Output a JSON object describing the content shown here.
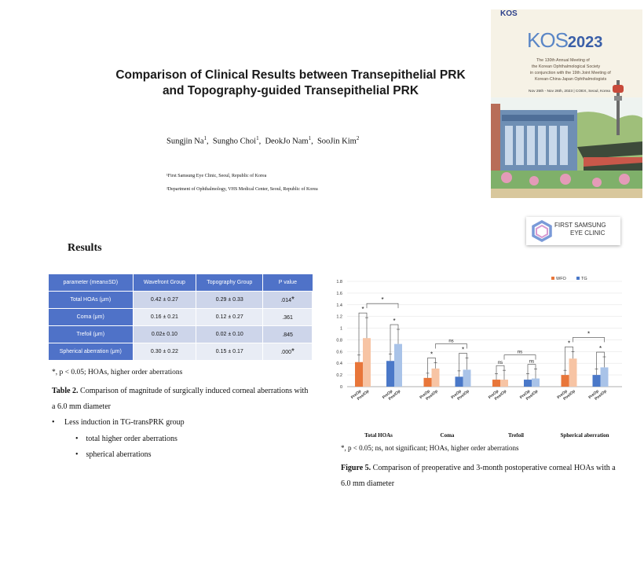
{
  "poster": {
    "title_line1": "Comparison of Clinical Results between Transepithelial PRK",
    "title_line2": "and Topography-guided Transepithelial PRK",
    "authors": [
      {
        "name": "Sungjin Na",
        "sup": "1"
      },
      {
        "name": "Sungho Choi",
        "sup": "1"
      },
      {
        "name": "DeokJo Nam",
        "sup": "1"
      },
      {
        "name": "SooJin Kim",
        "sup": "2"
      }
    ],
    "affiliation1": "¹First Samsung Eye Clinic, Seoul, Republic of Korea",
    "affiliation2": "²Department of Ophthalmology, VHS Medical Center, Seoul, Republic of Korea"
  },
  "conference": {
    "small_logo": "KOS",
    "brand": "KOS",
    "year": "2023",
    "line1": "The 130th Annual Meeting of",
    "line2": "the Korean Ophthalmological Society",
    "line3": "in conjunction with the 19th Joint Meeting of",
    "line4": "Korean-China-Japan Ophthalmologists",
    "date": "Nov 25th - Nov 26th, 2023 | COEX, Seoul, Korea"
  },
  "clinic": {
    "line1": "FIRST SAMSUNG",
    "line2": "EYE CLINIC"
  },
  "results_heading": "Results",
  "table": {
    "headers": [
      "parameter (mean±SD)",
      "Wavefront Group",
      "Topography Group",
      "P value"
    ],
    "rows": [
      {
        "param": "Total HOAs (μm)",
        "wf": "0.42 ± 0.27",
        "tg": "0.29 ± 0.33",
        "p": ".014",
        "star": "*"
      },
      {
        "param": "Coma (μm)",
        "wf": "0.16 ± 0.21",
        "tg": "0.12 ± 0.27",
        "p": ".361",
        "star": ""
      },
      {
        "param": "Trefoil (μm)",
        "wf": "0.02± 0.10",
        "tg": "0.02 ± 0.10",
        "p": ".845",
        "star": ""
      },
      {
        "param": "Spherical aberration (μm)",
        "wf": "0.30 ± 0.22",
        "tg": "0.15 ± 0.17",
        "p": ".000",
        "star": "*"
      }
    ],
    "footnote": "*, p < 0.05; HOAs, higher order aberrations",
    "caption_bold": "Table 2.",
    "caption_text": " Comparison of magnitude of surgically induced corneal aberrations with a 6.0 mm  diameter",
    "bullet_main": "Less induction in TG-transPRK group",
    "bullet_sub1": "total higher order aberrations",
    "bullet_sub2": "spherical aberrations"
  },
  "figure": {
    "footnote": "*, p < 0.05; ns, not significant; HOAs, higher order aberrations",
    "caption_bold": "Figure 5.",
    "caption_text": " Comparison of preoperative and 3-month postoperative corneal HOAs with a 6.0 mm diameter"
  },
  "chart_data": {
    "type": "bar",
    "categories": [
      "Total HOAs",
      "Coma",
      "Trefoil",
      "Spherical aberration"
    ],
    "subcategories": [
      "PreOp",
      "PostOp"
    ],
    "series": [
      {
        "name": "WFO",
        "color": "#e8763a",
        "color_light": "#f7c4a4",
        "values_preop": [
          0.42,
          0.15,
          0.12,
          0.2
        ],
        "values_postop": [
          0.83,
          0.31,
          0.12,
          0.48
        ],
        "err_preop": [
          0.12,
          0.08,
          0.1,
          0.08
        ],
        "err_postop": [
          0.35,
          0.1,
          0.16,
          0.12
        ]
      },
      {
        "name": "TG",
        "color": "#4a78c8",
        "color_light": "#a9c3e8",
        "values_preop": [
          0.44,
          0.17,
          0.12,
          0.2
        ],
        "values_postop": [
          0.73,
          0.29,
          0.14,
          0.33
        ],
        "err_preop": [
          0.12,
          0.1,
          0.1,
          0.1
        ],
        "err_postop": [
          0.25,
          0.2,
          0.16,
          0.18
        ]
      }
    ],
    "ylim": [
      0,
      1.8
    ],
    "yticks": [
      "0",
      "0.2",
      "0.4",
      "0.6",
      "0.8",
      "1",
      "1.2",
      "1.4",
      "1.6",
      "1.8"
    ],
    "legend_position": "top-right",
    "significance": {
      "within": [
        "*",
        "*",
        "*",
        "*",
        "ns",
        "ns",
        "*",
        "*"
      ],
      "between": [
        "*",
        "ns",
        "ns",
        "*"
      ]
    }
  }
}
